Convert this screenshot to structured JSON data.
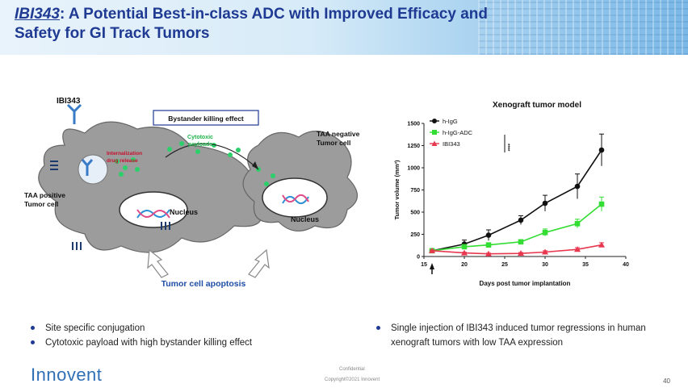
{
  "slide": {
    "title_drug": "IBI343",
    "title_rest_line1": ": A Potential Best-in-class ADC with Improved Efficacy and",
    "title_line2": "Safety for GI Track Tumors",
    "page_number": "40",
    "confidential": "Confidential",
    "copyright": "Copyright©2021 Innovent",
    "logo_text": "Innovent"
  },
  "diagram": {
    "drug_label": "IBI343",
    "bystander_box": "Bystander killing effect",
    "payload_label_1": "Cytotoxic",
    "payload_label_2": "payloads",
    "internalization_1": "Internalization",
    "internalization_2": "drug release",
    "nucleus_left": "Nucleus",
    "nucleus_right": "Nucleus",
    "tumor_pos_1": "TAA positive",
    "tumor_pos_2": "Tumor cell",
    "tumor_neg_1": "TAA negative",
    "tumor_neg_2": "Tumor cell",
    "apoptosis": "Tumor cell apoptosis"
  },
  "chart_data": {
    "type": "line",
    "title": "Xenograft tumor model",
    "xlabel": "Days post tumor implantation",
    "ylabel": "Tumor volume (mm³)",
    "xlim": [
      15,
      40
    ],
    "ylim": [
      0,
      1500
    ],
    "xticks": [
      "15",
      "20",
      "25",
      "30",
      "35",
      "40"
    ],
    "yticks": [
      "0",
      "250",
      "500",
      "750",
      "1000",
      "1250",
      "1500"
    ],
    "significance": "****",
    "series": [
      {
        "name": "h-IgG",
        "color": "#111111",
        "marker": "circle",
        "x": [
          16,
          20,
          23,
          27,
          30,
          34,
          37
        ],
        "y": [
          65,
          140,
          240,
          410,
          600,
          790,
          1200
        ],
        "err": [
          10,
          45,
          60,
          50,
          90,
          140,
          180
        ]
      },
      {
        "name": "h-IgG-ADC",
        "color": "#33dd33",
        "marker": "square",
        "x": [
          16,
          20,
          23,
          27,
          30,
          34,
          37
        ],
        "y": [
          65,
          110,
          130,
          165,
          270,
          370,
          590
        ],
        "err": [
          10,
          15,
          20,
          25,
          40,
          50,
          80
        ]
      },
      {
        "name": "IBI343",
        "color": "#e8384f",
        "marker": "triangle",
        "x": [
          16,
          20,
          23,
          27,
          30,
          34,
          37
        ],
        "y": [
          65,
          40,
          30,
          35,
          50,
          80,
          130
        ],
        "err": [
          8,
          8,
          8,
          10,
          15,
          20,
          25
        ]
      }
    ]
  },
  "bullets_left": [
    "Site specific conjugation",
    "Cytotoxic payload with high bystander killing effect"
  ],
  "bullets_right": [
    "Single injection of IBI343 induced tumor regressions in human",
    "xenograft tumors with low TAA expression"
  ]
}
